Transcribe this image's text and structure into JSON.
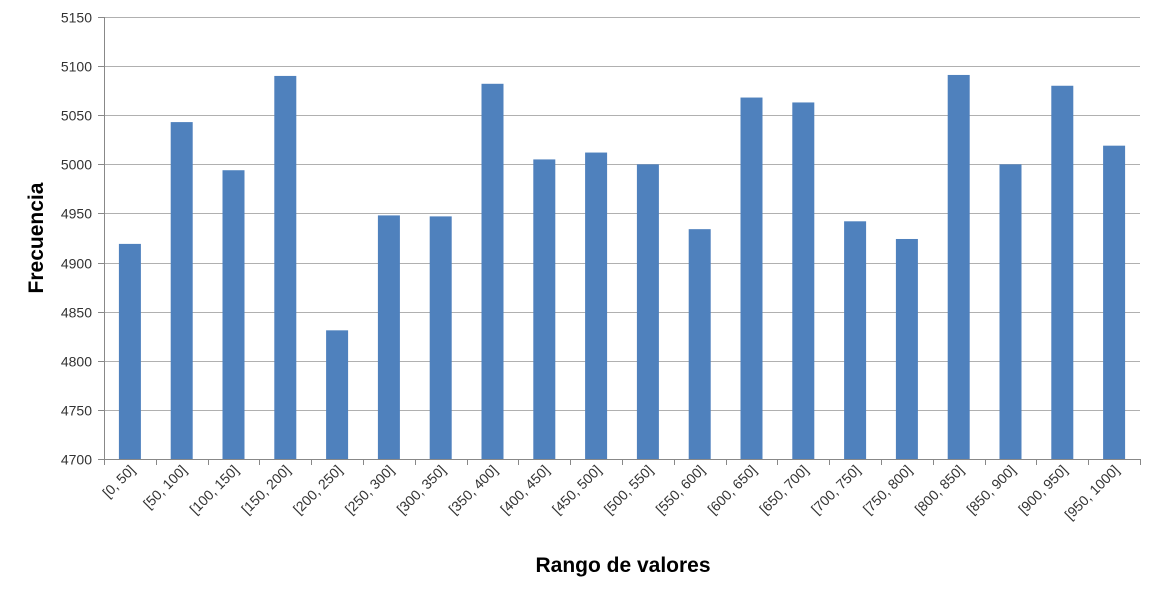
{
  "chart_data": {
    "type": "bar",
    "title": "",
    "xlabel": "Rango de valores",
    "ylabel": "Frecuencia",
    "ylim": [
      4700,
      5150
    ],
    "yticks": [
      4700,
      4750,
      4800,
      4850,
      4900,
      4950,
      5000,
      5050,
      5100,
      5150
    ],
    "grid": true,
    "legend": "none",
    "bar_color": "#4f81bd",
    "grid_color": "#b0b0b0",
    "categories": [
      "[0, 50]",
      "[50, 100]",
      "[100, 150]",
      "[150, 200]",
      "[200, 250]",
      "[250, 300]",
      "[300, 350]",
      "[350, 400]",
      "[400, 450]",
      "[450, 500]",
      "[500, 550]",
      "[550, 600]",
      "[600, 650]",
      "[650, 700]",
      "[700, 750]",
      "[750, 800]",
      "[800, 850]",
      "[850, 900]",
      "[900, 950]",
      "[950, 1000]"
    ],
    "values": [
      4919,
      5043,
      4994,
      5090,
      4831,
      4948,
      4947,
      5082,
      5005,
      5012,
      5000,
      4934,
      5068,
      5063,
      4942,
      4924,
      5091,
      5000,
      5080,
      5019
    ]
  }
}
